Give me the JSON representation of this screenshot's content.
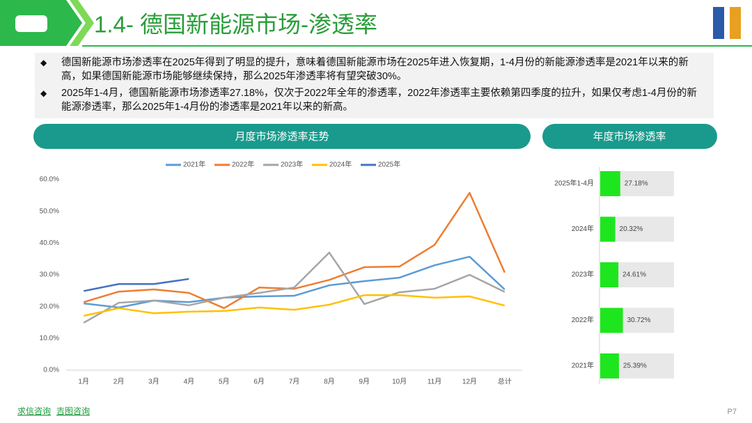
{
  "header": {
    "title": "1.4- 德国新能源市场-渗透率"
  },
  "bullets": [
    "德国新能源市场渗透率在2025年得到了明显的提升，意味着德国新能源市场在2025年进入恢复期，1-4月份的新能源渗透率是2021年以来的新高，如果德国新能源市场能够继续保持，那么2025年渗透率将有望突破30%。",
    "2025年1-4月，德国新能源市场渗透率27.18%，仅次于2022年全年的渗透率，2022年渗透率主要依赖第四季度的拉升，如果仅考虑1-4月份的新能源渗透率，那么2025年1-4月份的渗透率是2021年以来的新高。"
  ],
  "footer": {
    "links": [
      "求信咨询",
      "吉图咨询"
    ],
    "page": "P7"
  },
  "chart_data": [
    {
      "type": "line",
      "title": "月度市场渗透率走势",
      "grid": false,
      "legend": "top",
      "categories": [
        "1月",
        "2月",
        "3月",
        "4月",
        "5月",
        "6月",
        "7月",
        "8月",
        "9月",
        "10月",
        "11月",
        "12月",
        "总计"
      ],
      "ylim": [
        0,
        60
      ],
      "yticks": [
        {
          "value": 0,
          "label": "0.0%"
        },
        {
          "value": 10,
          "label": "10.0%"
        },
        {
          "value": 20,
          "label": "20.0%"
        },
        {
          "value": 30,
          "label": "30.0%"
        },
        {
          "value": 40,
          "label": "40.0%"
        },
        {
          "value": 50,
          "label": "50.0%"
        },
        {
          "value": 60,
          "label": "60.0%"
        }
      ],
      "series": [
        {
          "name": "2021年",
          "color": "#5b9bd5",
          "values": [
            21.0,
            19.7,
            21.9,
            21.4,
            22.8,
            23.2,
            23.4,
            26.7,
            28.0,
            29.1,
            33.0,
            35.7,
            25.39
          ]
        },
        {
          "name": "2022年",
          "color": "#ed7d31",
          "values": [
            21.4,
            24.7,
            25.4,
            24.3,
            19.5,
            26.0,
            25.6,
            28.4,
            32.4,
            32.6,
            39.4,
            55.8,
            30.72
          ]
        },
        {
          "name": "2023年",
          "color": "#a5a5a5",
          "values": [
            14.9,
            21.2,
            21.9,
            20.4,
            22.8,
            24.3,
            26.0,
            37.0,
            20.8,
            24.5,
            25.6,
            30.0,
            24.61
          ]
        },
        {
          "name": "2024年",
          "color": "#ffc000",
          "values": [
            17.1,
            19.5,
            17.9,
            18.4,
            18.6,
            19.7,
            19.0,
            20.6,
            23.6,
            23.6,
            22.8,
            23.2,
            20.32
          ]
        },
        {
          "name": "2025年",
          "color": "#4472c4",
          "values": [
            24.9,
            27.1,
            27.1,
            28.7,
            null,
            null,
            null,
            null,
            null,
            null,
            null,
            null,
            null
          ]
        }
      ]
    },
    {
      "type": "hbar",
      "title": "年度市场渗透率",
      "color": "#1ee61e",
      "xlim": [
        0,
        100
      ],
      "categories": [
        "2025年1-4月",
        "2024年",
        "2023年",
        "2022年",
        "2021年"
      ],
      "values": [
        27.18,
        20.32,
        24.61,
        30.72,
        25.39
      ],
      "value_labels": [
        "27.18%",
        "20.32%",
        "24.61%",
        "30.72%",
        "25.39%"
      ]
    }
  ]
}
